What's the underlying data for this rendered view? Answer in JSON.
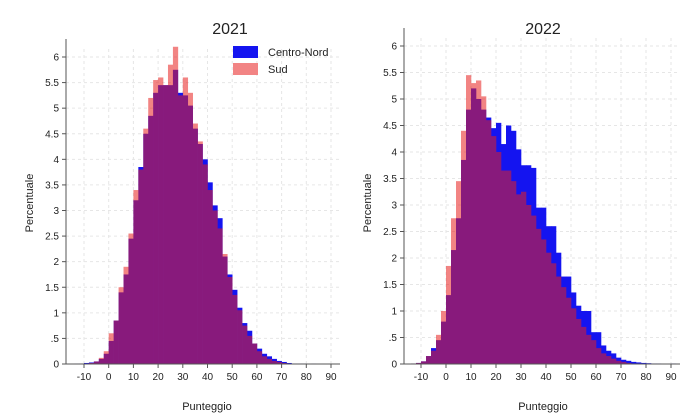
{
  "chart_data": [
    {
      "type": "bar",
      "title": "2021",
      "xlabel": "Punteggio",
      "ylabel": "Percentuale",
      "xlim": [
        -15,
        92
      ],
      "ylim": [
        0,
        6
      ],
      "xticks": [
        "-10",
        "0",
        "10",
        "20",
        "30",
        "40",
        "50",
        "60",
        "70",
        "80",
        "90"
      ],
      "yticks": [
        "0",
        ".5",
        "1",
        "1.5",
        "2",
        "2.5",
        "3",
        "3.5",
        "4",
        "4.5",
        "5",
        "5.5",
        "6"
      ],
      "bin_start": -14,
      "bin_width": 2,
      "legend": {
        "position": "top-right",
        "entries": [
          "Centro-Nord",
          "Sud"
        ]
      },
      "series": [
        {
          "name": "Centro-Nord",
          "color": "#1414f0",
          "values": [
            0.01,
            0.01,
            0.02,
            0.03,
            0.05,
            0.1,
            0.2,
            0.45,
            0.85,
            1.4,
            1.75,
            2.45,
            3.2,
            3.85,
            4.5,
            4.85,
            5.3,
            5.45,
            5.45,
            5.45,
            5.75,
            5.3,
            5.25,
            5.05,
            4.6,
            4.3,
            4.0,
            3.55,
            3.1,
            2.85,
            2.1,
            1.75,
            1.45,
            1.1,
            0.8,
            0.65,
            0.4,
            0.3,
            0.2,
            0.15,
            0.1,
            0.06,
            0.04,
            0.02,
            0.01,
            0.01,
            0.01,
            0.005,
            0.01,
            0.005
          ]
        },
        {
          "name": "Sud",
          "color": "#e8201f",
          "values": [
            0,
            0.01,
            0.01,
            0.02,
            0.05,
            0.12,
            0.25,
            0.6,
            0.85,
            1.5,
            1.9,
            2.55,
            3.4,
            3.8,
            4.6,
            5.2,
            5.55,
            5.6,
            5.45,
            5.85,
            6.2,
            5.25,
            5.6,
            5.3,
            4.7,
            4.35,
            3.9,
            3.4,
            3.0,
            2.65,
            2.15,
            1.7,
            1.35,
            1.05,
            0.75,
            0.55,
            0.4,
            0.25,
            0.15,
            0.1,
            0.06,
            0.04,
            0.02,
            0.01,
            0,
            0,
            0,
            0,
            0,
            0
          ]
        }
      ]
    },
    {
      "type": "bar",
      "title": "2022",
      "xlabel": "Punteggio",
      "ylabel": "Percentuale",
      "xlim": [
        -15,
        92
      ],
      "ylim": [
        0,
        6
      ],
      "xticks": [
        "-10",
        "0",
        "10",
        "20",
        "30",
        "40",
        "50",
        "60",
        "70",
        "80",
        "90"
      ],
      "yticks": [
        "0",
        ".5",
        "1",
        "1.5",
        "2",
        "2.5",
        "3",
        "3.5",
        "4",
        "4.5",
        "5",
        "5.5",
        "6"
      ],
      "bin_start": -14,
      "bin_width": 2,
      "series": [
        {
          "name": "Centro-Nord",
          "color": "#1414f0",
          "values": [
            0.01,
            0.02,
            0.05,
            0.15,
            0.3,
            0.45,
            0.8,
            1.3,
            2.15,
            2.75,
            3.85,
            4.8,
            5.2,
            5.0,
            4.8,
            4.65,
            4.45,
            4.55,
            4.15,
            4.5,
            4.4,
            4.05,
            3.75,
            3.75,
            3.7,
            2.95,
            2.95,
            2.6,
            2.6,
            2.1,
            1.65,
            1.65,
            1.35,
            1.1,
            1.0,
            1.0,
            0.6,
            0.6,
            0.35,
            0.25,
            0.2,
            0.12,
            0.08,
            0.06,
            0.04,
            0.03,
            0.02,
            0.015,
            0.01,
            0.01,
            0,
            0.005,
            0.01
          ]
        },
        {
          "name": "Sud",
          "color": "#e8201f",
          "values": [
            0.01,
            0.02,
            0.05,
            0.15,
            0.25,
            0.55,
            1.0,
            1.85,
            2.75,
            3.45,
            4.4,
            5.45,
            5.3,
            5.35,
            5.05,
            4.6,
            4.3,
            4.0,
            3.65,
            3.65,
            3.45,
            3.2,
            3.25,
            3.0,
            2.8,
            2.55,
            2.35,
            2.1,
            1.9,
            1.65,
            1.45,
            1.25,
            1.05,
            0.85,
            0.7,
            0.55,
            0.45,
            0.3,
            0.2,
            0.15,
            0.1,
            0.06,
            0.04,
            0.02,
            0.01,
            0.01,
            0,
            0,
            0,
            0,
            0,
            0,
            0
          ]
        }
      ]
    }
  ]
}
